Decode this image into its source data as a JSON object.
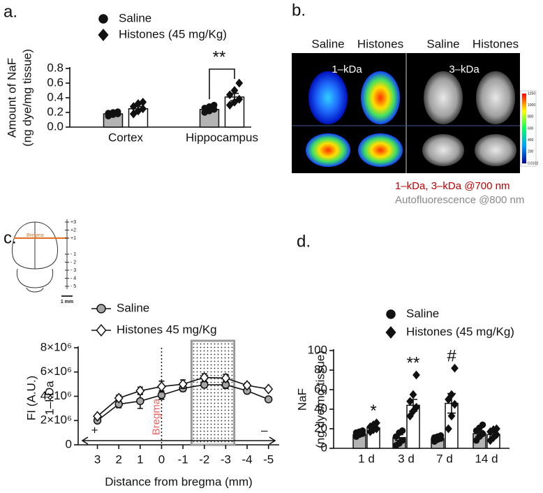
{
  "chart_data": [
    {
      "panel_label": "a.",
      "type": "bar",
      "categories": [
        "Cortex",
        "Hippocampus"
      ],
      "series": [
        {
          "name": "Saline",
          "color": "#b3b3b3",
          "marker": "circle",
          "values": [
            0.18,
            0.24
          ],
          "errors": [
            0.01,
            0.02
          ],
          "points": [
            [
              0.15,
              0.17,
              0.18,
              0.19,
              0.2,
              0.21
            ],
            [
              0.2,
              0.22,
              0.24,
              0.26,
              0.28,
              0.3
            ]
          ]
        },
        {
          "name": "Histones (45 mg/Kg)",
          "color": "#ffffff",
          "marker": "diamond",
          "values": [
            0.25,
            0.41
          ],
          "errors": [
            0.03,
            0.05
          ],
          "points": [
            [
              0.18,
              0.22,
              0.25,
              0.28,
              0.32,
              0.34
            ],
            [
              0.3,
              0.34,
              0.38,
              0.44,
              0.5,
              0.6
            ]
          ]
        }
      ],
      "ylim": [
        0,
        0.8
      ],
      "yticks": [
        {
          "value": 0,
          "label": "0.0"
        },
        0.2,
        0.4,
        0.6,
        0.8
      ],
      "ylabel": [
        "Amount of NaF",
        "(ng dye/mg tissue)"
      ],
      "annotations": [
        null,
        "**"
      ]
    },
    {
      "panel_label": "c.",
      "type": "line",
      "x": [
        3,
        2,
        1,
        0,
        -1,
        -2,
        -3,
        -4,
        -5
      ],
      "series": [
        {
          "name": "Saline",
          "color": "#a6a6a6",
          "marker": "circle",
          "values": [
            2000000,
            3350000,
            3600000,
            4100000,
            4650000,
            4950000,
            4950000,
            4450000,
            3750000
          ],
          "errors": [
            150000,
            300000,
            600000,
            350000,
            250000,
            250000,
            300000,
            200000,
            150000
          ]
        },
        {
          "name": "Histones 45 mg/Kg",
          "color": "#ffffff",
          "marker": "diamond",
          "values": [
            2350000,
            3850000,
            4450000,
            4800000,
            5000000,
            5550000,
            5500000,
            4900000,
            4600000
          ],
          "errors": [
            150000,
            250000,
            300000,
            450000,
            350000,
            300000,
            300000,
            200000,
            150000
          ]
        }
      ],
      "xlim": [
        3.9,
        -5.5
      ],
      "xticks": [
        3,
        2,
        1,
        0,
        -1,
        -2,
        -3,
        -4,
        -5
      ],
      "ylim": [
        0,
        8000000
      ],
      "yticks": [
        0,
        {
          "value": 2000000,
          "label": "2×10⁶"
        },
        {
          "value": 4000000,
          "label": "4×10⁶"
        },
        {
          "value": 6000000,
          "label": "6×10⁶"
        },
        {
          "value": 8000000,
          "label": "8×10⁶"
        }
      ],
      "ylabel": [
        "FI (A.U.)",
        "1–kDa"
      ],
      "xlabel": "Distance from bregma (mm)",
      "highlight_range": [
        -1.4,
        -3.4
      ],
      "bregma_line": 0,
      "bregma_label": "Bregma",
      "direction_labels": [
        "+",
        "–"
      ],
      "inset": {
        "ticks": [
          "+3",
          "+2",
          "+1",
          "- 1",
          "- 2",
          "- 3",
          "- 4",
          "- 5"
        ],
        "marker": "Bregma",
        "scale": "1 mm"
      }
    },
    {
      "panel_label": "d.",
      "type": "bar",
      "categories": [
        "1 d",
        "3 d",
        "7 d",
        "14 d"
      ],
      "series": [
        {
          "name": "Saline",
          "color": "#b3b3b3",
          "marker": "circle",
          "values": [
            14,
            11,
            10,
            15
          ],
          "errors": [
            1,
            3,
            1,
            3
          ],
          "points": [
            [
              12,
              14,
              15,
              16,
              17,
              18
            ],
            [
              3,
              5,
              8,
              12,
              16,
              18
            ],
            [
              7,
              9,
              10,
              11,
              12,
              13
            ],
            [
              8,
              12,
              15,
              18,
              21,
              24
            ]
          ]
        },
        {
          "name": "Histones (45 mg/Kg)",
          "color": "#ffffff",
          "marker": "diamond",
          "values": [
            21,
            44,
            46,
            14
          ],
          "errors": [
            2,
            6,
            10,
            2
          ],
          "points": [
            [
              17,
              19,
              20,
              22,
              24,
              26
            ],
            [
              33,
              38,
              42,
              48,
              55,
              75
            ],
            [
              20,
              33,
              45,
              50,
              55,
              82
            ],
            [
              8,
              11,
              14,
              17,
              19,
              20
            ]
          ]
        }
      ],
      "ylim": [
        0,
        100
      ],
      "yticks": [
        0,
        20,
        40,
        60,
        80,
        100
      ],
      "ylabel": [
        "NaF",
        "(ng dye/mg tissue)"
      ],
      "annotations": [
        "*",
        "**",
        "#",
        null
      ]
    }
  ],
  "panel_b": {
    "panel_label": "b.",
    "columns": [
      "Saline",
      "Histones",
      "Saline",
      "Histones"
    ],
    "probes": [
      "1–kDa",
      "3–kDa"
    ],
    "colorbar_ticks": [
      "1250",
      "1000",
      "800",
      "600",
      "400",
      "200",
      "0.0102"
    ],
    "caption": [
      "1–kDa, 3–kDa   @700 nm",
      "Autofluorescence @800 nm"
    ]
  }
}
